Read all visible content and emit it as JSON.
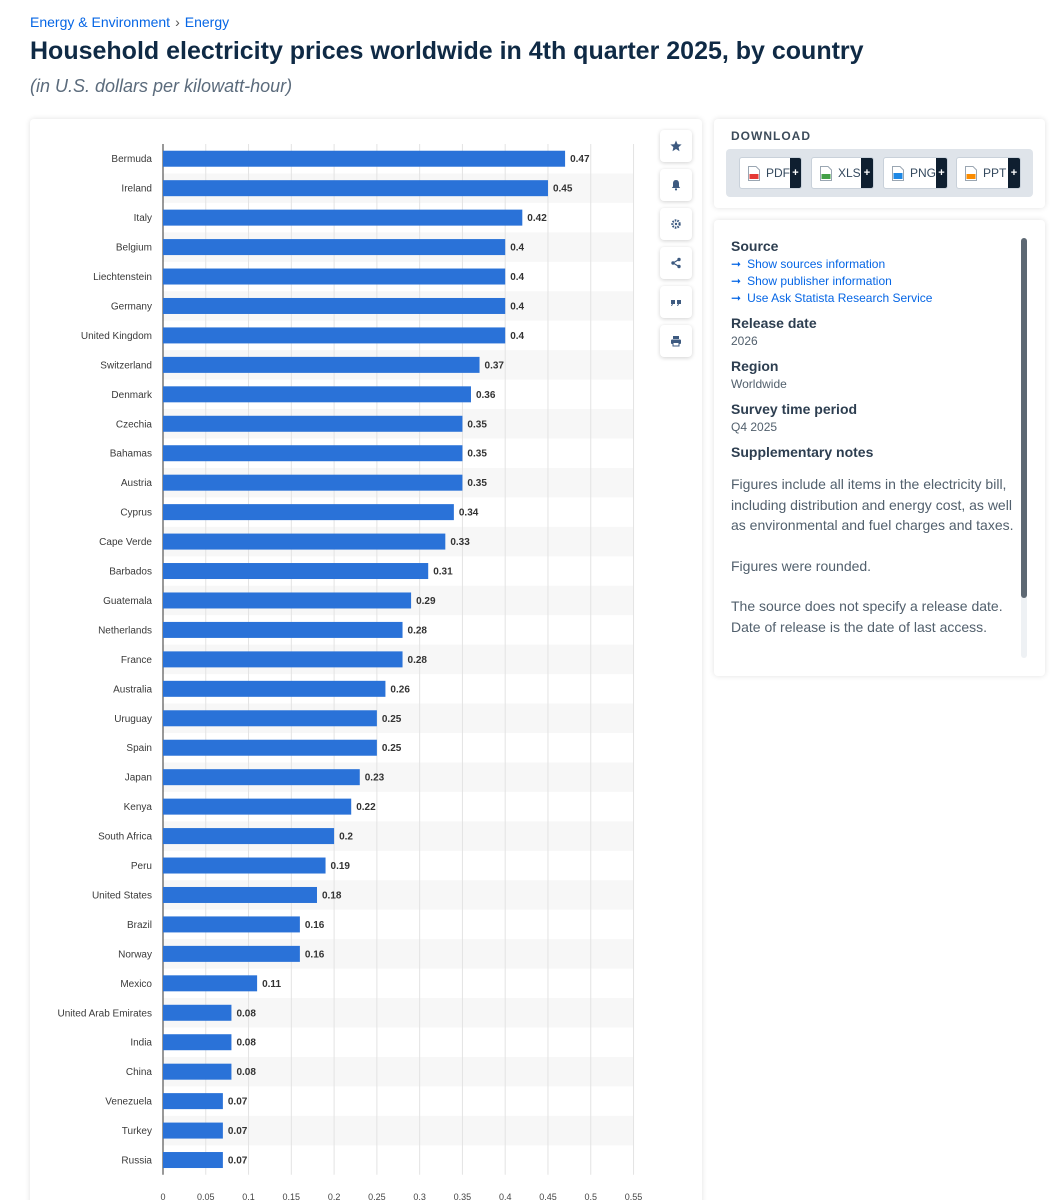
{
  "breadcrumb": {
    "parent": "Energy & Environment",
    "current": "Energy",
    "separator": "›"
  },
  "title": "Household electricity prices worldwide in 4th quarter 2025, by country",
  "subtitle": "(in U.S. dollars per kilowatt-hour)",
  "toolbar": {
    "icons": [
      "star-icon",
      "bell-icon",
      "gear-icon",
      "share-icon",
      "quote-icon",
      "print-icon"
    ]
  },
  "download": {
    "heading": "DOWNLOAD",
    "buttons": [
      {
        "label": "PDF",
        "plus": "+",
        "color": "#e53935"
      },
      {
        "label": "XLS",
        "plus": "+",
        "color": "#43a047"
      },
      {
        "label": "PNG",
        "plus": "+",
        "color": "#1e88e5"
      },
      {
        "label": "PPT",
        "plus": "+",
        "color": "#fb8c00"
      }
    ]
  },
  "info": {
    "source_heading": "Source",
    "source_links": [
      "Show sources information",
      "Show publisher information",
      "Use Ask Statista Research Service"
    ],
    "release_heading": "Release date",
    "release_value": "2026",
    "region_heading": "Region",
    "region_value": "Worldwide",
    "period_heading": "Survey time period",
    "period_value": "Q4 2025",
    "notes_heading": "Supplementary notes",
    "notes": [
      "Figures include all items in the electricity bill, including distribution and energy cost, as well as environmental and fuel charges and taxes.",
      "Figures were rounded.",
      "The source does not specify a release date. Date of release is the date of last access."
    ]
  },
  "colors": {
    "bar": "#2a72d8",
    "link": "#0666e5",
    "title": "#0f2a45"
  },
  "chart_data": {
    "type": "bar",
    "orientation": "horizontal",
    "categories": [
      "Bermuda",
      "Ireland",
      "Italy",
      "Belgium",
      "Liechtenstein",
      "Germany",
      "United Kingdom",
      "Switzerland",
      "Denmark",
      "Czechia",
      "Bahamas",
      "Austria",
      "Cyprus",
      "Cape Verde",
      "Barbados",
      "Guatemala",
      "Netherlands",
      "France",
      "Australia",
      "Uruguay",
      "Spain",
      "Japan",
      "Kenya",
      "South Africa",
      "Peru",
      "United States",
      "Brazil",
      "Norway",
      "Mexico",
      "United Arab Emirates",
      "India",
      "China",
      "Venezuela",
      "Turkey",
      "Russia"
    ],
    "values": [
      0.47,
      0.45,
      0.42,
      0.4,
      0.4,
      0.4,
      0.4,
      0.37,
      0.36,
      0.35,
      0.35,
      0.35,
      0.34,
      0.33,
      0.31,
      0.29,
      0.28,
      0.28,
      0.26,
      0.25,
      0.25,
      0.23,
      0.22,
      0.2,
      0.19,
      0.18,
      0.16,
      0.16,
      0.11,
      0.08,
      0.08,
      0.08,
      0.07,
      0.07,
      0.07
    ],
    "ticks": [
      "0",
      "0.05",
      "0.1",
      "0.15",
      "0.2",
      "0.25",
      "0.3",
      "0.35",
      "0.4",
      "0.45",
      "0.5",
      "0.55"
    ],
    "xlim": [
      0,
      0.55
    ],
    "grid": true
  }
}
